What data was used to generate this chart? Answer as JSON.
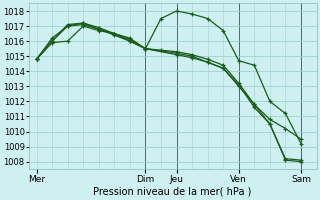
{
  "xlabel": "Pression niveau de la mer( hPa )",
  "bg_color": "#cff0f0",
  "grid_color": "#a0d0d0",
  "line_color": "#1a5c1a",
  "vline_color": "#3a7a3a",
  "ylim": [
    1007.5,
    1018.5
  ],
  "yticks": [
    1008,
    1009,
    1010,
    1011,
    1012,
    1013,
    1014,
    1015,
    1016,
    1017,
    1018
  ],
  "xtick_labels": [
    "Mer",
    "Dim",
    "Jeu",
    "Ven",
    "Sam"
  ],
  "xtick_positions": [
    0,
    7,
    9,
    13,
    17
  ],
  "xlim": [
    -0.5,
    18.0
  ],
  "vlines": [
    7,
    9,
    13,
    17
  ],
  "lines": [
    {
      "x": [
        0,
        1,
        2,
        3,
        4,
        5,
        6,
        7,
        8,
        9,
        10,
        11,
        12,
        13,
        14,
        15,
        16,
        17
      ],
      "y": [
        1014.8,
        1015.9,
        1016.0,
        1017.0,
        1016.7,
        1016.5,
        1016.2,
        1015.5,
        1017.5,
        1018.0,
        1017.8,
        1017.5,
        1016.7,
        1014.7,
        1014.4,
        1012.0,
        1011.2,
        1009.2
      ]
    },
    {
      "x": [
        0,
        1,
        2,
        3,
        4,
        5,
        6,
        7,
        8,
        9,
        10,
        11,
        12,
        13,
        14,
        15,
        16,
        17
      ],
      "y": [
        1014.8,
        1016.2,
        1017.0,
        1017.1,
        1016.8,
        1016.5,
        1016.1,
        1015.5,
        1015.4,
        1015.3,
        1015.1,
        1014.8,
        1014.4,
        1013.2,
        1011.8,
        1010.8,
        1010.2,
        1009.5
      ]
    },
    {
      "x": [
        0,
        1,
        2,
        3,
        4,
        5,
        6,
        7,
        9,
        10,
        11,
        12,
        13,
        14,
        15,
        16,
        17
      ],
      "y": [
        1014.8,
        1016.0,
        1017.1,
        1017.2,
        1016.9,
        1016.5,
        1016.0,
        1015.5,
        1015.2,
        1015.0,
        1014.6,
        1014.2,
        1013.1,
        1011.6,
        1010.5,
        1008.2,
        1008.1
      ]
    },
    {
      "x": [
        0,
        1,
        2,
        3,
        4,
        5,
        6,
        7,
        9,
        10,
        11,
        12,
        13,
        14,
        15,
        16,
        17
      ],
      "y": [
        1014.8,
        1016.0,
        1017.0,
        1017.2,
        1016.8,
        1016.4,
        1016.0,
        1015.5,
        1015.1,
        1014.9,
        1014.6,
        1014.2,
        1013.0,
        1011.8,
        1010.5,
        1008.1,
        1008.0
      ]
    }
  ]
}
